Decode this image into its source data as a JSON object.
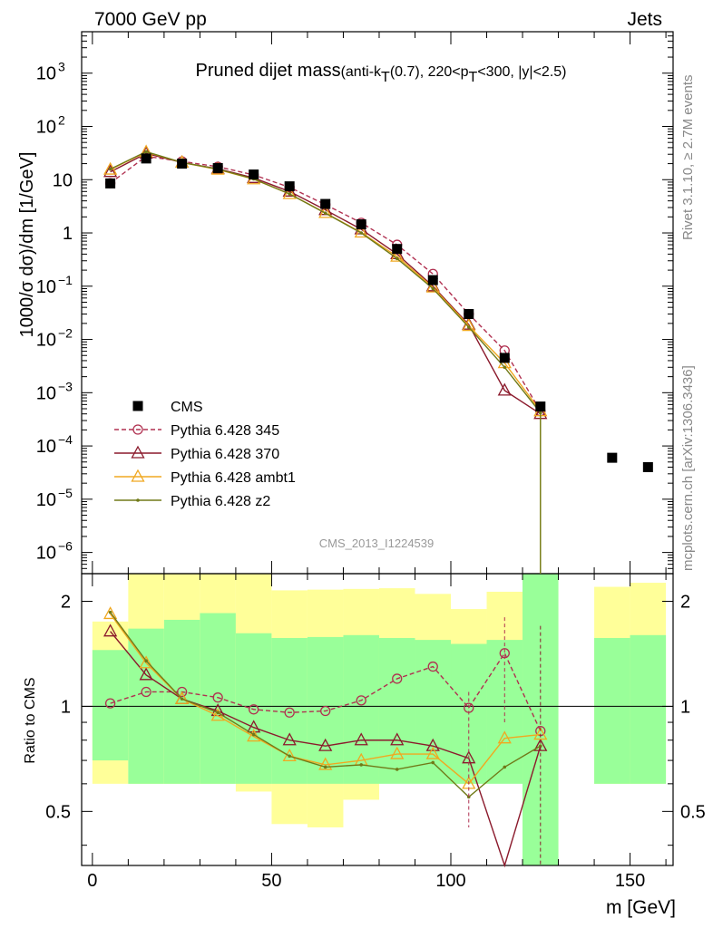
{
  "header": {
    "left": "7000 GeV pp",
    "right": "Jets"
  },
  "title": {
    "main": "Pruned dijet mass",
    "sub_parts": [
      "(anti-k",
      "T",
      "(0.7), 220<p",
      "T",
      "<300, |y|<2.5)"
    ]
  },
  "side_labels": {
    "rivet": "Rivet 3.1.10, ≥ 2.7M events",
    "mcplots": "mcplots.cern.ch [arXiv:1306.3436]"
  },
  "watermark": "CMS_2013_I1224539",
  "axes": {
    "main_ylabel": "1000/σ dσ)/dm [1/GeV]",
    "ratio_ylabel": "Ratio to CMS",
    "xlabel": "m [GeV]",
    "x_ticks": [
      "0",
      "50",
      "100",
      "150"
    ],
    "main_y_ticks": [
      {
        "base": "10",
        "exp": "3",
        "v": 1000
      },
      {
        "base": "10",
        "exp": "2",
        "v": 100
      },
      {
        "base": "10",
        "exp": "",
        "v": 10
      },
      {
        "base": "1",
        "exp": "",
        "v": 1
      },
      {
        "base": "10",
        "exp": "−1",
        "v": 0.1
      },
      {
        "base": "10",
        "exp": "−2",
        "v": 0.01
      },
      {
        "base": "10",
        "exp": "−3",
        "v": 0.001
      },
      {
        "base": "10",
        "exp": "−4",
        "v": 0.0001
      },
      {
        "base": "10",
        "exp": "−5",
        "v": 1e-05
      },
      {
        "base": "10",
        "exp": "−6",
        "v": 1e-06
      }
    ],
    "ratio_y_ticks": [
      "2",
      "1",
      "0.5"
    ]
  },
  "legend": [
    {
      "label": "CMS",
      "color": "#000000",
      "marker": "square",
      "dash": false
    },
    {
      "label": "Pythia 6.428 345",
      "color": "#b03050",
      "marker": "circle",
      "dash": true
    },
    {
      "label": "Pythia 6.428 370",
      "color": "#8b1a2c",
      "marker": "triangle",
      "dash": false
    },
    {
      "label": "Pythia 6.428 ambt1",
      "color": "#f0a820",
      "marker": "triangle",
      "dash": false
    },
    {
      "label": "Pythia 6.428 z2",
      "color": "#707a18",
      "marker": "dot",
      "dash": false
    }
  ],
  "chart_data": {
    "type": "line",
    "x_scale": "linear",
    "y_scale": "log",
    "xlim": [
      -3,
      162
    ],
    "ylim": [
      4e-07,
      6000
    ],
    "ratio_ylim": [
      0.35,
      2.4
    ],
    "ratio_scale": "log",
    "bins": [
      [
        0,
        10
      ],
      [
        10,
        20
      ],
      [
        20,
        30
      ],
      [
        30,
        40
      ],
      [
        40,
        50
      ],
      [
        50,
        60
      ],
      [
        60,
        70
      ],
      [
        70,
        80
      ],
      [
        80,
        90
      ],
      [
        90,
        100
      ],
      [
        100,
        110
      ],
      [
        110,
        120
      ],
      [
        120,
        130
      ],
      [
        130,
        140
      ],
      [
        140,
        150
      ],
      [
        150,
        160
      ]
    ],
    "data": {
      "name": "CMS",
      "x": [
        5,
        15,
        25,
        35,
        45,
        55,
        65,
        75,
        85,
        95,
        105,
        115,
        125,
        145,
        155
      ],
      "y": [
        8.5,
        25,
        20,
        16.5,
        12.5,
        7.5,
        3.5,
        1.45,
        0.5,
        0.13,
        0.03,
        0.0045,
        0.00055,
        6e-05,
        4e-05
      ]
    },
    "series": [
      {
        "name": "Pythia 6.428 345",
        "x": [
          5,
          15,
          25,
          35,
          45,
          55,
          65,
          75,
          85,
          95,
          105,
          115,
          125
        ],
        "y": [
          8.6,
          27.5,
          22,
          17.5,
          12.3,
          7.2,
          3.4,
          1.55,
          0.6,
          0.17,
          0.03,
          0.0062,
          0.00045
        ]
      },
      {
        "name": "Pythia 6.428 370",
        "x": [
          5,
          15,
          25,
          35,
          45,
          55,
          65,
          75,
          85,
          95,
          105,
          115,
          125
        ],
        "y": [
          14,
          31,
          21,
          16,
          10.8,
          6,
          2.7,
          1.17,
          0.4,
          0.1,
          0.019,
          0.0011,
          0.0004
        ]
      },
      {
        "name": "Pythia 6.428 ambt1",
        "x": [
          5,
          15,
          25,
          35,
          45,
          55,
          65,
          75,
          85,
          95,
          105,
          115,
          125
        ],
        "y": [
          15.5,
          33,
          21,
          15.5,
          10.2,
          5.4,
          2.38,
          1.02,
          0.36,
          0.095,
          0.018,
          0.0036,
          0.00045
        ]
      },
      {
        "name": "Pythia 6.428 z2",
        "x": [
          5,
          15,
          25,
          35,
          45,
          55,
          65,
          75,
          85,
          95,
          105,
          115,
          125
        ],
        "y": [
          15.8,
          33.5,
          21,
          15.8,
          10.3,
          5.4,
          2.35,
          1.0,
          0.33,
          0.09,
          0.017,
          0.003,
          0.00042
        ]
      }
    ],
    "ratio": {
      "bands_green": [
        [
          0.7,
          1.45
        ],
        [
          0.6,
          1.67
        ],
        [
          0.6,
          1.77
        ],
        [
          0.6,
          1.85
        ],
        [
          0.6,
          1.62
        ],
        [
          0.6,
          1.57
        ],
        [
          0.6,
          1.58
        ],
        [
          0.6,
          1.6
        ],
        [
          0.6,
          1.57
        ],
        [
          0.6,
          1.55
        ],
        [
          0.6,
          1.51
        ],
        [
          0.6,
          1.55
        ],
        [
          0.35,
          2.4
        ],
        null,
        [
          0.6,
          1.57
        ],
        [
          0.6,
          1.6
        ]
      ],
      "bands_yellow": [
        [
          0.6,
          1.75
        ],
        [
          0.6,
          2.4
        ],
        [
          0.6,
          2.4
        ],
        [
          0.6,
          2.4
        ],
        [
          0.57,
          2.4
        ],
        [
          0.46,
          2.15
        ],
        [
          0.45,
          2.16
        ],
        [
          0.54,
          2.17
        ],
        [
          0.63,
          2.18
        ],
        [
          0.67,
          2.1
        ],
        [
          0.6,
          1.9
        ],
        [
          0.8,
          2.13
        ],
        [
          0.35,
          2.4
        ],
        null,
        [
          0.6,
          2.2
        ],
        [
          0.6,
          2.26
        ]
      ],
      "series": [
        {
          "name": "Pythia 6.428 345",
          "y": [
            1.02,
            1.1,
            1.1,
            1.06,
            0.98,
            0.96,
            0.97,
            1.04,
            1.2,
            1.3,
            0.99,
            1.42,
            0.85
          ]
        },
        {
          "name": "Pythia 6.428 370",
          "y": [
            1.64,
            1.23,
            1.05,
            0.97,
            0.87,
            0.8,
            0.77,
            0.8,
            0.8,
            0.77,
            0.71,
            0.25,
            0.77
          ]
        },
        {
          "name": "Pythia 6.428 ambt1",
          "y": [
            1.84,
            1.33,
            1.05,
            0.94,
            0.82,
            0.72,
            0.68,
            0.7,
            0.73,
            0.73,
            0.6,
            0.81,
            0.83
          ]
        },
        {
          "name": "Pythia 6.428 z2",
          "y": [
            1.86,
            1.35,
            1.05,
            0.96,
            0.83,
            0.72,
            0.67,
            0.68,
            0.66,
            0.69,
            0.55,
            0.67,
            0.77
          ]
        }
      ]
    }
  }
}
